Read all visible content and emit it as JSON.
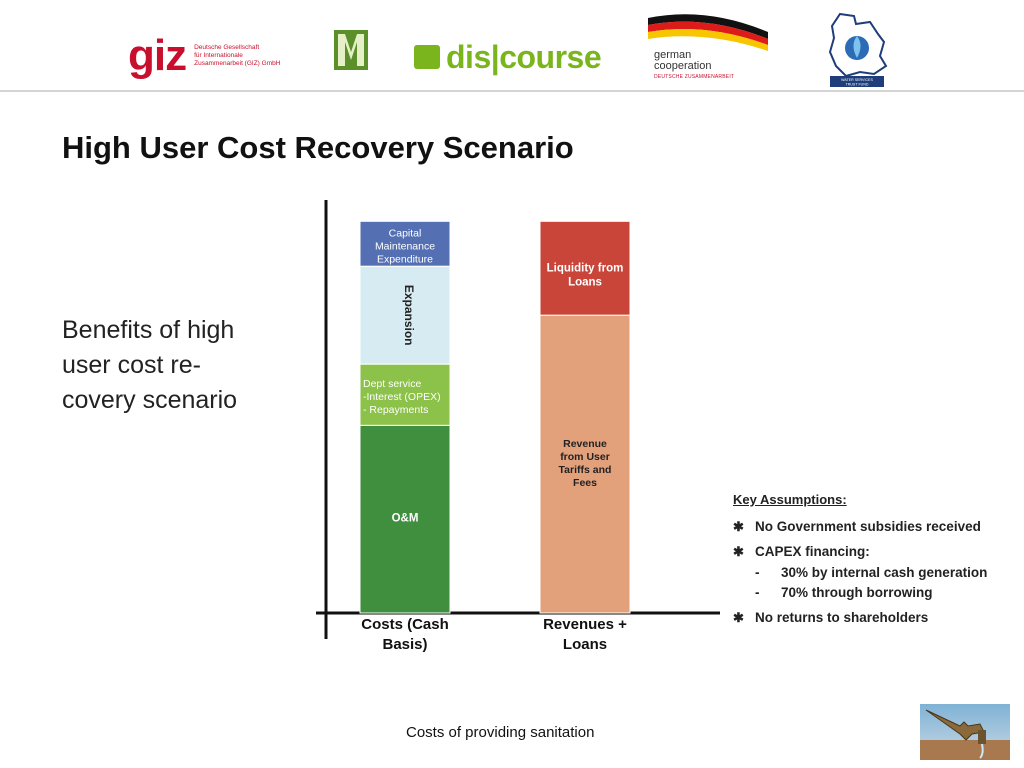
{
  "header": {
    "logos": {
      "giz": {
        "mark": "giz",
        "lines": [
          "Deutsche Gesellschaft",
          "für Internationale",
          "Zusammenarbeit (GIZ) GmbH"
        ]
      },
      "discourse": {
        "text": "dis|course"
      },
      "german_cooperation": {
        "line1": "german",
        "line2": "cooperation",
        "line3": "DEUTSCHE ZUSAMMENARBEIT"
      },
      "water_fund": {
        "line1": "WATER SERVICES",
        "line2": "TRUST FUND"
      }
    }
  },
  "slide": {
    "title": "High User Cost Recovery Scenario",
    "body_lines": [
      "Benefits of high",
      "user cost re-",
      "covery scenario"
    ]
  },
  "chart_data": {
    "type": "bar",
    "stacked": true,
    "categories": [
      "Costs (Cash Basis)",
      "Revenues + Loans"
    ],
    "category_label_lines": [
      [
        "Costs (Cash",
        "Basis)"
      ],
      [
        "Revenues +",
        "Loans"
      ]
    ],
    "ylim": [
      0,
      100
    ],
    "grid": false,
    "series": [
      {
        "name": "O&M",
        "label_lines": [
          "O&M"
        ],
        "category": 0,
        "value": 46,
        "color": "#3f8f3f",
        "text_color": "#ffffff"
      },
      {
        "name": "Dept service",
        "label_lines": [
          "Dept service",
          "-Interest (OPEX)",
          "- Repayments"
        ],
        "category": 0,
        "value": 15,
        "color": "#8cc14a",
        "text_color": "#ffffff"
      },
      {
        "name": "Expansion",
        "label_lines": [
          "Expansion"
        ],
        "category": 0,
        "value": 24,
        "color": "#d7ecf2",
        "text_color": "#222222",
        "vertical": true
      },
      {
        "name": "Capital Maintenance Expenditure",
        "label_lines": [
          "Capital",
          "Maintenance",
          "Expenditure"
        ],
        "category": 0,
        "value": 11,
        "color": "#5470b3",
        "text_color": "#ffffff"
      },
      {
        "name": "Revenue from User Tariffs and Fees",
        "label_lines": [
          "Revenue",
          "from User",
          "Tariffs and",
          "Fees"
        ],
        "category": 1,
        "value": 73,
        "color": "#e2a07b",
        "text_color": "#222222"
      },
      {
        "name": "Liquidity from Loans",
        "label_lines": [
          "Liquidity from",
          "Loans"
        ],
        "category": 1,
        "value": 23,
        "color": "#c9453a",
        "text_color": "#ffffff"
      }
    ]
  },
  "assumptions": {
    "heading": "Key Assumptions:",
    "items": [
      {
        "bullet": "✱",
        "text": "No Government subsidies received"
      },
      {
        "bullet": "✱",
        "text": "CAPEX financing:"
      },
      {
        "bullet": "✱",
        "text": "No returns to shareholders"
      }
    ],
    "subitems": [
      {
        "dash": "-",
        "text": "30% by internal cash generation"
      },
      {
        "dash": "-",
        "text": "70% through borrowing"
      }
    ]
  },
  "footer": {
    "text": "Costs of providing sanitation"
  },
  "colors": {
    "axis": "#111111",
    "giz_red": "#c8102e",
    "discourse_green": "#7ab51d"
  }
}
